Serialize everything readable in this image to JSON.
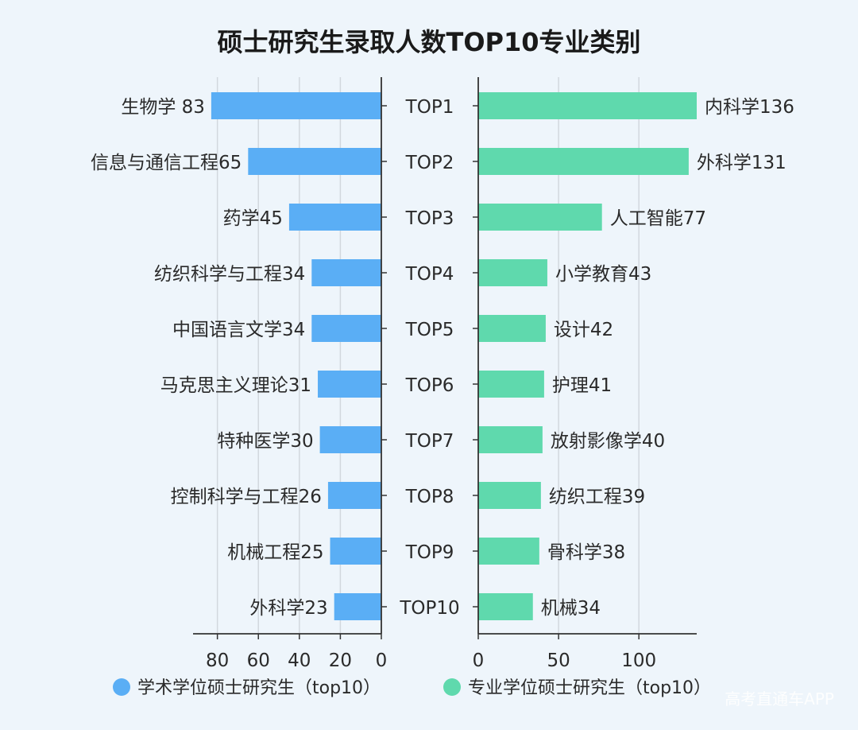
{
  "chart_data": {
    "type": "bar",
    "title": "硕士研究生录取人数TOP10专业类别",
    "categories": [
      "TOP1",
      "TOP2",
      "TOP3",
      "TOP4",
      "TOP5",
      "TOP6",
      "TOP7",
      "TOP8",
      "TOP9",
      "TOP10"
    ],
    "series": [
      {
        "name": "学术学位硕士研究生（top10）",
        "color": "#5aaef5",
        "values": [
          83,
          65,
          45,
          34,
          34,
          31,
          30,
          26,
          25,
          23
        ],
        "labels": [
          "生物学 83",
          "信息与通信工程65",
          "药学45",
          "纺织科学与工程34",
          "中国语言文学34",
          "马克思主义理论31",
          "特种医学30",
          "控制科学与工程26",
          "机械工程25",
          "外科学23"
        ],
        "axis_ticks": [
          "80",
          "60",
          "40",
          "20",
          "0"
        ],
        "xlim": [
          0,
          88
        ],
        "direction": "reversed"
      },
      {
        "name": "专业学位硕士研究生（top10）",
        "color": "#5fd9ad",
        "values": [
          136,
          131,
          77,
          43,
          42,
          41,
          40,
          39,
          38,
          34
        ],
        "labels": [
          "内科学136",
          "外科学131",
          "人工智能77",
          "小学教育43",
          "设计42",
          "护理41",
          "放射影像学40",
          "纺织工程39",
          "骨科学38",
          "机械34"
        ],
        "axis_ticks": [
          "0",
          "50",
          "100"
        ],
        "xlim": [
          0,
          136
        ]
      }
    ],
    "grid": true,
    "legend_position": "bottom"
  },
  "watermark": "高考直通车APP"
}
